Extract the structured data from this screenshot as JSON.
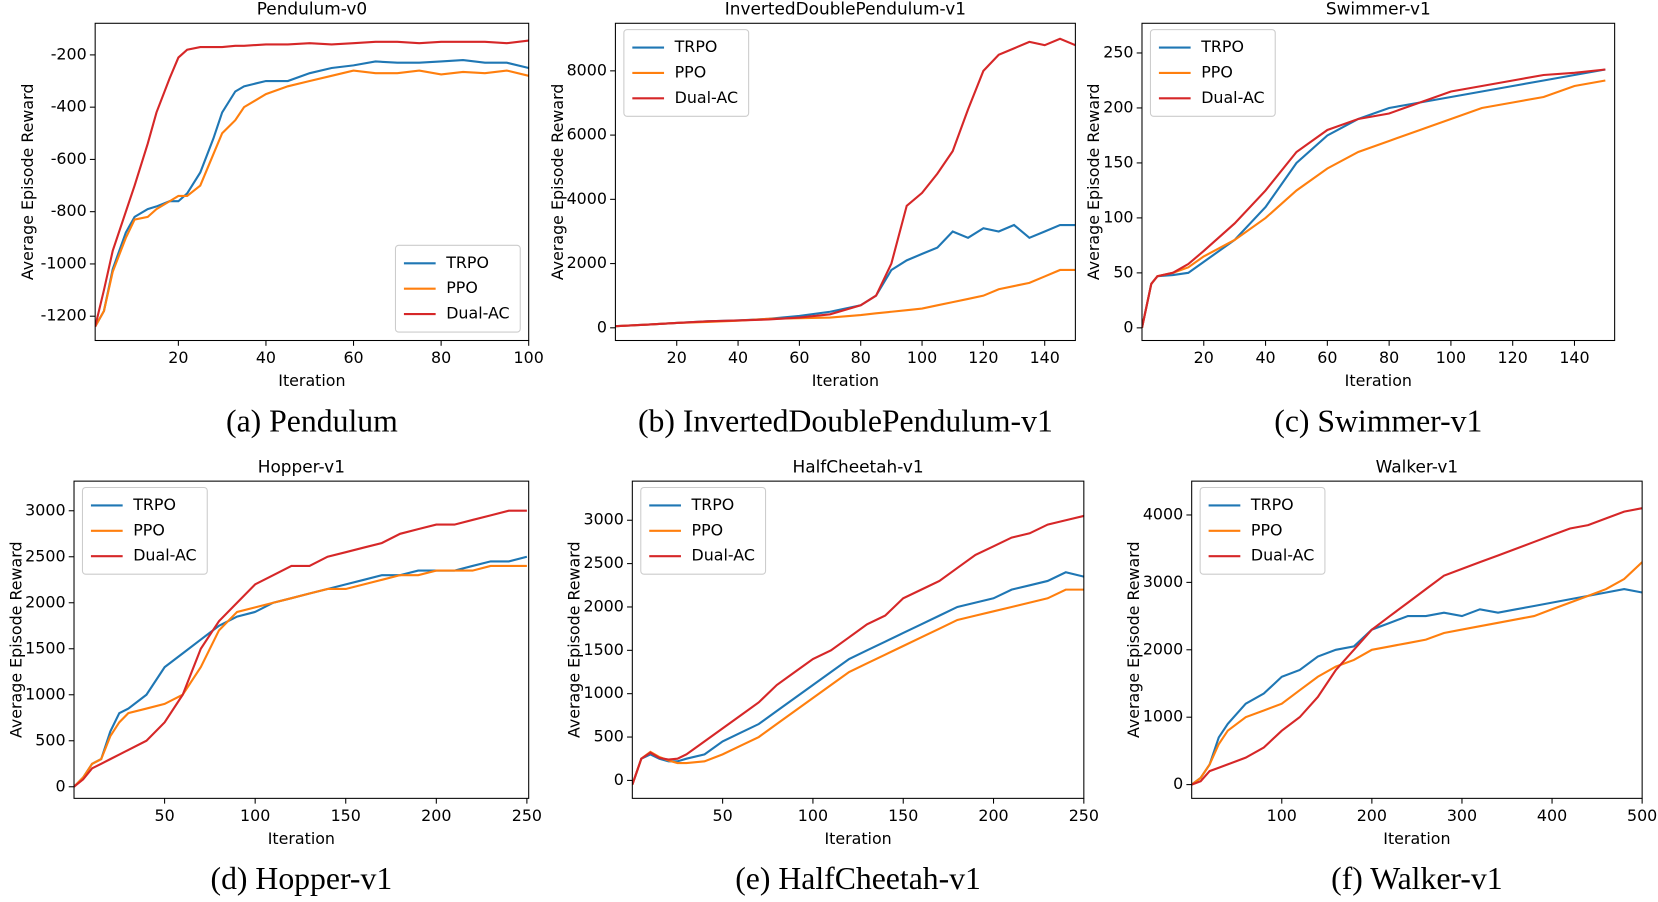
{
  "chart_data": [
    {
      "type": "line",
      "title": "Pendulum-v0",
      "caption": "(a) Pendulum",
      "xlabel": "Iteration",
      "ylabel": "Average Episode Reward",
      "x": [
        1,
        3,
        5,
        8,
        10,
        13,
        15,
        18,
        20,
        22,
        25,
        28,
        30,
        33,
        35,
        40,
        45,
        50,
        55,
        60,
        65,
        70,
        75,
        80,
        85,
        90,
        95,
        100
      ],
      "xlim": [
        1,
        100
      ],
      "xticks": [
        20,
        40,
        60,
        80,
        100
      ],
      "ylim": [
        -1293,
        -79
      ],
      "yticks": [
        -1200,
        -1000,
        -800,
        -600,
        -400,
        -200
      ],
      "legend": "lower right",
      "series": [
        {
          "name": "TRPO",
          "color": "#1f77b4",
          "values": [
            -1240,
            -1180,
            -1020,
            -880,
            -820,
            -790,
            -780,
            -760,
            -760,
            -730,
            -650,
            -520,
            -420,
            -340,
            -320,
            -300,
            -300,
            -270,
            -250,
            -240,
            -225,
            -230,
            -230,
            -225,
            -220,
            -230,
            -230,
            -250
          ]
        },
        {
          "name": "PPO",
          "color": "#ff7f0e",
          "values": [
            -1240,
            -1180,
            -1030,
            -900,
            -830,
            -820,
            -790,
            -760,
            -740,
            -740,
            -700,
            -580,
            -500,
            -450,
            -400,
            -350,
            -320,
            -300,
            -280,
            -260,
            -270,
            -270,
            -260,
            -275,
            -265,
            -270,
            -260,
            -280
          ]
        },
        {
          "name": "Dual-AC",
          "color": "#d62728",
          "values": [
            -1240,
            -1100,
            -950,
            -800,
            -700,
            -540,
            -420,
            -290,
            -210,
            -180,
            -170,
            -170,
            -170,
            -165,
            -165,
            -160,
            -160,
            -155,
            -160,
            -155,
            -150,
            -150,
            -155,
            -150,
            -150,
            -150,
            -155,
            -145
          ]
        }
      ]
    },
    {
      "type": "line",
      "title": "InvertedDoublePendulum-v1",
      "caption": "(b) InvertedDoublePendulum-v1",
      "xlabel": "Iteration",
      "ylabel": "Average Episode Reward",
      "x": [
        0,
        10,
        20,
        30,
        40,
        50,
        60,
        70,
        80,
        85,
        90,
        95,
        100,
        105,
        110,
        115,
        120,
        125,
        130,
        135,
        140,
        145,
        150
      ],
      "xlim": [
        0,
        150
      ],
      "xticks": [
        20,
        40,
        60,
        80,
        100,
        120,
        140
      ],
      "ylim": [
        -395,
        9481
      ],
      "yticks": [
        0,
        2000,
        4000,
        6000,
        8000
      ],
      "legend": "upper left",
      "series": [
        {
          "name": "TRPO",
          "color": "#1f77b4",
          "values": [
            50,
            100,
            150,
            200,
            230,
            280,
            370,
            500,
            700,
            1000,
            1800,
            2100,
            2300,
            2500,
            3000,
            2800,
            3100,
            3000,
            3200,
            2800,
            3000,
            3200,
            3200
          ]
        },
        {
          "name": "PPO",
          "color": "#ff7f0e",
          "values": [
            50,
            100,
            150,
            180,
            220,
            280,
            300,
            320,
            400,
            450,
            500,
            550,
            600,
            700,
            800,
            900,
            1000,
            1200,
            1300,
            1400,
            1600,
            1800,
            1800
          ]
        },
        {
          "name": "Dual-AC",
          "color": "#d62728",
          "values": [
            50,
            100,
            150,
            200,
            230,
            260,
            320,
            420,
            700,
            1000,
            2000,
            3800,
            4200,
            4800,
            5500,
            6800,
            8000,
            8500,
            8700,
            8900,
            8800,
            9000,
            8800
          ]
        }
      ]
    },
    {
      "type": "line",
      "title": "Swimmer-v1",
      "caption": "(c) Swimmer-v1",
      "xlabel": "Iteration",
      "ylabel": "Average Episode Reward",
      "x": [
        0,
        3,
        5,
        10,
        15,
        20,
        30,
        40,
        50,
        60,
        70,
        80,
        90,
        100,
        110,
        120,
        130,
        140,
        150
      ],
      "xlim": [
        0,
        153
      ],
      "xticks": [
        20,
        40,
        60,
        80,
        100,
        120,
        140
      ],
      "ylim": [
        -11.5,
        277
      ],
      "yticks": [
        0,
        50,
        100,
        150,
        200,
        250
      ],
      "legend": "upper left",
      "series": [
        {
          "name": "TRPO",
          "color": "#1f77b4",
          "values": [
            0,
            40,
            47,
            48,
            50,
            60,
            80,
            110,
            150,
            175,
            190,
            200,
            205,
            210,
            215,
            220,
            225,
            230,
            235
          ]
        },
        {
          "name": "PPO",
          "color": "#ff7f0e",
          "values": [
            0,
            40,
            47,
            50,
            55,
            65,
            80,
            100,
            125,
            145,
            160,
            170,
            180,
            190,
            200,
            205,
            210,
            220,
            225
          ]
        },
        {
          "name": "Dual-AC",
          "color": "#d62728",
          "values": [
            0,
            40,
            47,
            50,
            58,
            70,
            95,
            125,
            160,
            180,
            190,
            195,
            205,
            215,
            220,
            225,
            230,
            232,
            235
          ]
        }
      ]
    },
    {
      "type": "line",
      "title": "Hopper-v1",
      "caption": "(d) Hopper-v1",
      "xlabel": "Iteration",
      "ylabel": "Average Episode Reward",
      "x": [
        0,
        5,
        10,
        15,
        20,
        25,
        30,
        40,
        50,
        60,
        70,
        80,
        90,
        100,
        110,
        120,
        130,
        140,
        150,
        160,
        170,
        180,
        190,
        200,
        210,
        220,
        230,
        240,
        250
      ],
      "xlim": [
        0,
        251
      ],
      "xticks": [
        50,
        100,
        150,
        200,
        250
      ],
      "ylim": [
        -126,
        3322
      ],
      "yticks": [
        0,
        500,
        1000,
        1500,
        2000,
        2500,
        3000
      ],
      "legend": "upper left",
      "series": [
        {
          "name": "TRPO",
          "color": "#1f77b4",
          "values": [
            0,
            100,
            250,
            300,
            600,
            800,
            850,
            1000,
            1300,
            1450,
            1600,
            1750,
            1850,
            1900,
            2000,
            2050,
            2100,
            2150,
            2200,
            2250,
            2300,
            2300,
            2350,
            2350,
            2350,
            2400,
            2450,
            2450,
            2500
          ]
        },
        {
          "name": "PPO",
          "color": "#ff7f0e",
          "values": [
            0,
            100,
            250,
            300,
            550,
            700,
            800,
            850,
            900,
            1000,
            1300,
            1700,
            1900,
            1950,
            2000,
            2050,
            2100,
            2150,
            2150,
            2200,
            2250,
            2300,
            2300,
            2350,
            2350,
            2350,
            2400,
            2400,
            2400
          ]
        },
        {
          "name": "Dual-AC",
          "color": "#d62728",
          "values": [
            0,
            80,
            200,
            250,
            300,
            350,
            400,
            500,
            700,
            1000,
            1500,
            1800,
            2000,
            2200,
            2300,
            2400,
            2400,
            2500,
            2550,
            2600,
            2650,
            2750,
            2800,
            2850,
            2850,
            2900,
            2950,
            3000,
            3000
          ]
        }
      ]
    },
    {
      "type": "line",
      "title": "HalfCheetah-v1",
      "caption": "(e) HalfCheetah-v1",
      "xlabel": "Iteration",
      "ylabel": "Average Episode Reward",
      "x": [
        0,
        5,
        10,
        15,
        20,
        25,
        30,
        40,
        50,
        60,
        70,
        80,
        90,
        100,
        110,
        120,
        130,
        140,
        150,
        160,
        170,
        180,
        190,
        200,
        210,
        220,
        230,
        240,
        250
      ],
      "xlim": [
        0,
        250
      ],
      "xticks": [
        50,
        100,
        150,
        200,
        250
      ],
      "ylim": [
        -207,
        3451
      ],
      "yticks": [
        0,
        500,
        1000,
        1500,
        2000,
        2500,
        3000
      ],
      "legend": "upper left",
      "series": [
        {
          "name": "TRPO",
          "color": "#1f77b4",
          "values": [
            -50,
            250,
            300,
            250,
            220,
            220,
            250,
            300,
            450,
            550,
            650,
            800,
            950,
            1100,
            1250,
            1400,
            1500,
            1600,
            1700,
            1800,
            1900,
            2000,
            2050,
            2100,
            2200,
            2250,
            2300,
            2400,
            2350
          ]
        },
        {
          "name": "PPO",
          "color": "#ff7f0e",
          "values": [
            -50,
            250,
            330,
            270,
            230,
            200,
            200,
            220,
            300,
            400,
            500,
            650,
            800,
            950,
            1100,
            1250,
            1350,
            1450,
            1550,
            1650,
            1750,
            1850,
            1900,
            1950,
            2000,
            2050,
            2100,
            2200,
            2200
          ]
        },
        {
          "name": "Dual-AC",
          "color": "#d62728",
          "values": [
            -50,
            250,
            320,
            260,
            240,
            250,
            300,
            450,
            600,
            750,
            900,
            1100,
            1250,
            1400,
            1500,
            1650,
            1800,
            1900,
            2100,
            2200,
            2300,
            2450,
            2600,
            2700,
            2800,
            2850,
            2950,
            3000,
            3050
          ]
        }
      ]
    },
    {
      "type": "line",
      "title": "Walker-v1",
      "caption": "(f) Walker-v1",
      "xlabel": "Iteration",
      "ylabel": "Average Episode Reward",
      "x": [
        0,
        10,
        20,
        30,
        40,
        60,
        80,
        100,
        120,
        140,
        160,
        180,
        200,
        220,
        240,
        260,
        280,
        300,
        320,
        340,
        360,
        380,
        400,
        420,
        440,
        460,
        480,
        500
      ],
      "xlim": [
        0,
        500
      ],
      "xticks": [
        100,
        200,
        300,
        400,
        500
      ],
      "ylim": [
        -204,
        4502
      ],
      "yticks": [
        0,
        1000,
        2000,
        3000,
        4000
      ],
      "legend": "upper left",
      "series": [
        {
          "name": "TRPO",
          "color": "#1f77b4",
          "values": [
            0,
            100,
            300,
            700,
            900,
            1200,
            1350,
            1600,
            1700,
            1900,
            2000,
            2050,
            2300,
            2400,
            2500,
            2500,
            2550,
            2500,
            2600,
            2550,
            2600,
            2650,
            2700,
            2750,
            2800,
            2850,
            2900,
            2850
          ]
        },
        {
          "name": "PPO",
          "color": "#ff7f0e",
          "values": [
            0,
            100,
            300,
            600,
            800,
            1000,
            1100,
            1200,
            1400,
            1600,
            1750,
            1850,
            2000,
            2050,
            2100,
            2150,
            2250,
            2300,
            2350,
            2400,
            2450,
            2500,
            2600,
            2700,
            2800,
            2900,
            3050,
            3300
          ]
        },
        {
          "name": "Dual-AC",
          "color": "#d62728",
          "values": [
            0,
            50,
            200,
            250,
            300,
            400,
            550,
            800,
            1000,
            1300,
            1700,
            2000,
            2300,
            2500,
            2700,
            2900,
            3100,
            3200,
            3300,
            3400,
            3500,
            3600,
            3700,
            3800,
            3850,
            3950,
            4050,
            4100
          ]
        }
      ]
    }
  ]
}
